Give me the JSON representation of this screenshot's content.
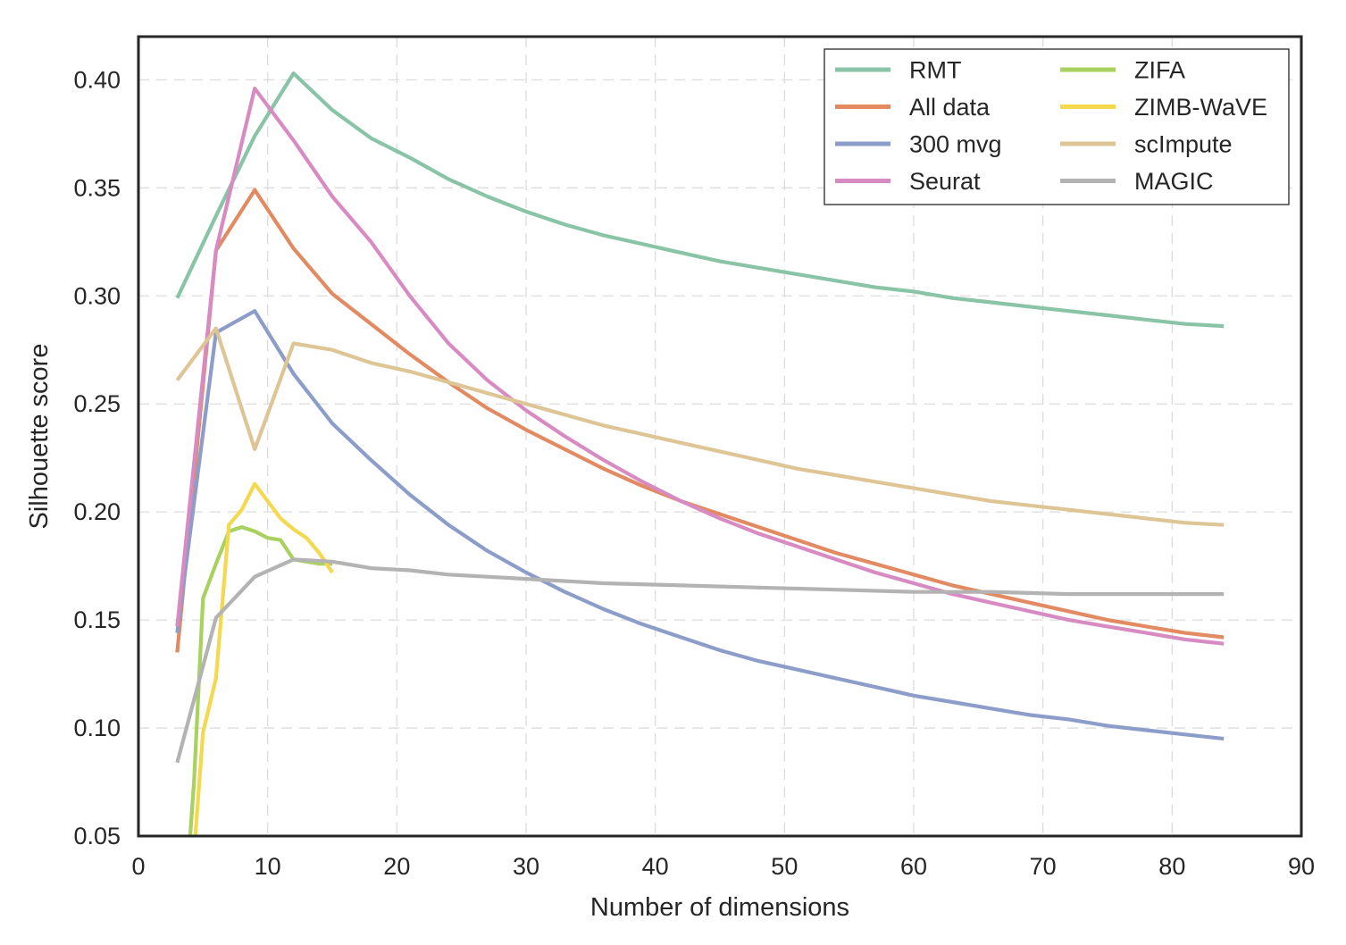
{
  "chart_data": {
    "type": "line",
    "xlabel": "Number of dimensions",
    "ylabel": "Silhouette score",
    "xlim": [
      0,
      90
    ],
    "ylim": [
      0.05,
      0.42
    ],
    "xticks": [
      0,
      10,
      20,
      30,
      40,
      50,
      60,
      70,
      80,
      90
    ],
    "yticks": [
      0.05,
      0.1,
      0.15,
      0.2,
      0.25,
      0.3,
      0.35,
      0.4
    ],
    "xtick_labels": [
      "0",
      "10",
      "20",
      "30",
      "40",
      "50",
      "60",
      "70",
      "80",
      "90"
    ],
    "ytick_labels": [
      "0.05",
      "0.10",
      "0.15",
      "0.20",
      "0.25",
      "0.30",
      "0.35",
      "0.40"
    ],
    "grid": true,
    "legend": {
      "placement": "top-right",
      "columns": 2
    },
    "series": [
      {
        "name": "RMT",
        "color": "#88c4a5",
        "x": [
          3,
          6,
          9,
          12,
          15,
          18,
          21,
          24,
          27,
          30,
          33,
          36,
          39,
          42,
          45,
          48,
          51,
          54,
          57,
          60,
          63,
          66,
          69,
          72,
          75,
          78,
          81,
          84
        ],
        "y": [
          0.299,
          0.337,
          0.374,
          0.403,
          0.386,
          0.373,
          0.364,
          0.354,
          0.346,
          0.339,
          0.333,
          0.328,
          0.324,
          0.32,
          0.316,
          0.313,
          0.31,
          0.307,
          0.304,
          0.302,
          0.299,
          0.297,
          0.295,
          0.293,
          0.291,
          0.289,
          0.287,
          0.286
        ]
      },
      {
        "name": "All data",
        "color": "#e28a62",
        "x": [
          3,
          6,
          9,
          12,
          15,
          18,
          21,
          24,
          27,
          30,
          33,
          36,
          39,
          42,
          45,
          48,
          51,
          54,
          57,
          60,
          63,
          66,
          69,
          72,
          75,
          78,
          81,
          84
        ],
        "y": [
          0.135,
          0.321,
          0.349,
          0.322,
          0.301,
          0.287,
          0.273,
          0.26,
          0.248,
          0.238,
          0.229,
          0.22,
          0.212,
          0.205,
          0.199,
          0.193,
          0.187,
          0.181,
          0.176,
          0.171,
          0.166,
          0.162,
          0.158,
          0.154,
          0.15,
          0.147,
          0.144,
          0.142
        ]
      },
      {
        "name": "300 mvg",
        "color": "#8c9dc9",
        "x": [
          3,
          6,
          9,
          12,
          15,
          18,
          21,
          24,
          27,
          30,
          33,
          36,
          39,
          42,
          45,
          48,
          51,
          54,
          57,
          60,
          63,
          66,
          69,
          72,
          75,
          78,
          81,
          84
        ],
        "y": [
          0.144,
          0.283,
          0.293,
          0.264,
          0.241,
          0.224,
          0.208,
          0.194,
          0.182,
          0.172,
          0.163,
          0.155,
          0.148,
          0.142,
          0.136,
          0.131,
          0.127,
          0.123,
          0.119,
          0.115,
          0.112,
          0.109,
          0.106,
          0.104,
          0.101,
          0.099,
          0.097,
          0.095
        ]
      },
      {
        "name": "Seurat",
        "color": "#d88bc3",
        "x": [
          3,
          6,
          9,
          12,
          15,
          18,
          21,
          24,
          27,
          30,
          33,
          36,
          39,
          42,
          45,
          48,
          51,
          54,
          57,
          60,
          63,
          66,
          69,
          72,
          75,
          78,
          81,
          84
        ],
        "y": [
          0.147,
          0.321,
          0.396,
          0.372,
          0.346,
          0.325,
          0.3,
          0.278,
          0.261,
          0.247,
          0.235,
          0.224,
          0.214,
          0.205,
          0.197,
          0.19,
          0.184,
          0.178,
          0.172,
          0.167,
          0.162,
          0.158,
          0.154,
          0.15,
          0.147,
          0.144,
          0.141,
          0.139
        ]
      },
      {
        "name": "ZIFA",
        "color": "#a8d160",
        "x": [
          4,
          4.3,
          5,
          6,
          7,
          8,
          9,
          10,
          11,
          12,
          13,
          14,
          15
        ],
        "y": [
          0.05,
          0.075,
          0.16,
          0.176,
          0.191,
          0.193,
          0.191,
          0.188,
          0.187,
          0.178,
          0.177,
          0.176,
          0.176
        ]
      },
      {
        "name": "ZIMB-WaVE",
        "color": "#f4d84e",
        "x": [
          4.4,
          5,
          6,
          7,
          8,
          9,
          10,
          11,
          12,
          13,
          14,
          15
        ],
        "y": [
          0.05,
          0.098,
          0.123,
          0.194,
          0.201,
          0.213,
          0.205,
          0.197,
          0.192,
          0.188,
          0.181,
          0.172
        ]
      },
      {
        "name": "scImpute",
        "color": "#ddc596",
        "x": [
          3,
          6,
          9,
          12,
          15,
          18,
          21,
          24,
          27,
          30,
          33,
          36,
          39,
          42,
          45,
          48,
          51,
          54,
          57,
          60,
          63,
          66,
          69,
          72,
          75,
          78,
          81,
          84
        ],
        "y": [
          0.261,
          0.285,
          0.229,
          0.278,
          0.275,
          0.269,
          0.265,
          0.26,
          0.255,
          0.25,
          0.245,
          0.24,
          0.236,
          0.232,
          0.228,
          0.224,
          0.22,
          0.217,
          0.214,
          0.211,
          0.208,
          0.205,
          0.203,
          0.201,
          0.199,
          0.197,
          0.195,
          0.194
        ]
      },
      {
        "name": "MAGIC",
        "color": "#b3b3b3",
        "x": [
          3,
          6,
          9,
          12,
          15,
          18,
          21,
          24,
          27,
          30,
          36,
          42,
          48,
          54,
          60,
          66,
          72,
          78,
          84
        ],
        "y": [
          0.084,
          0.151,
          0.17,
          0.178,
          0.177,
          0.174,
          0.173,
          0.171,
          0.17,
          0.169,
          0.167,
          0.166,
          0.165,
          0.164,
          0.163,
          0.163,
          0.162,
          0.162,
          0.162
        ]
      }
    ]
  }
}
